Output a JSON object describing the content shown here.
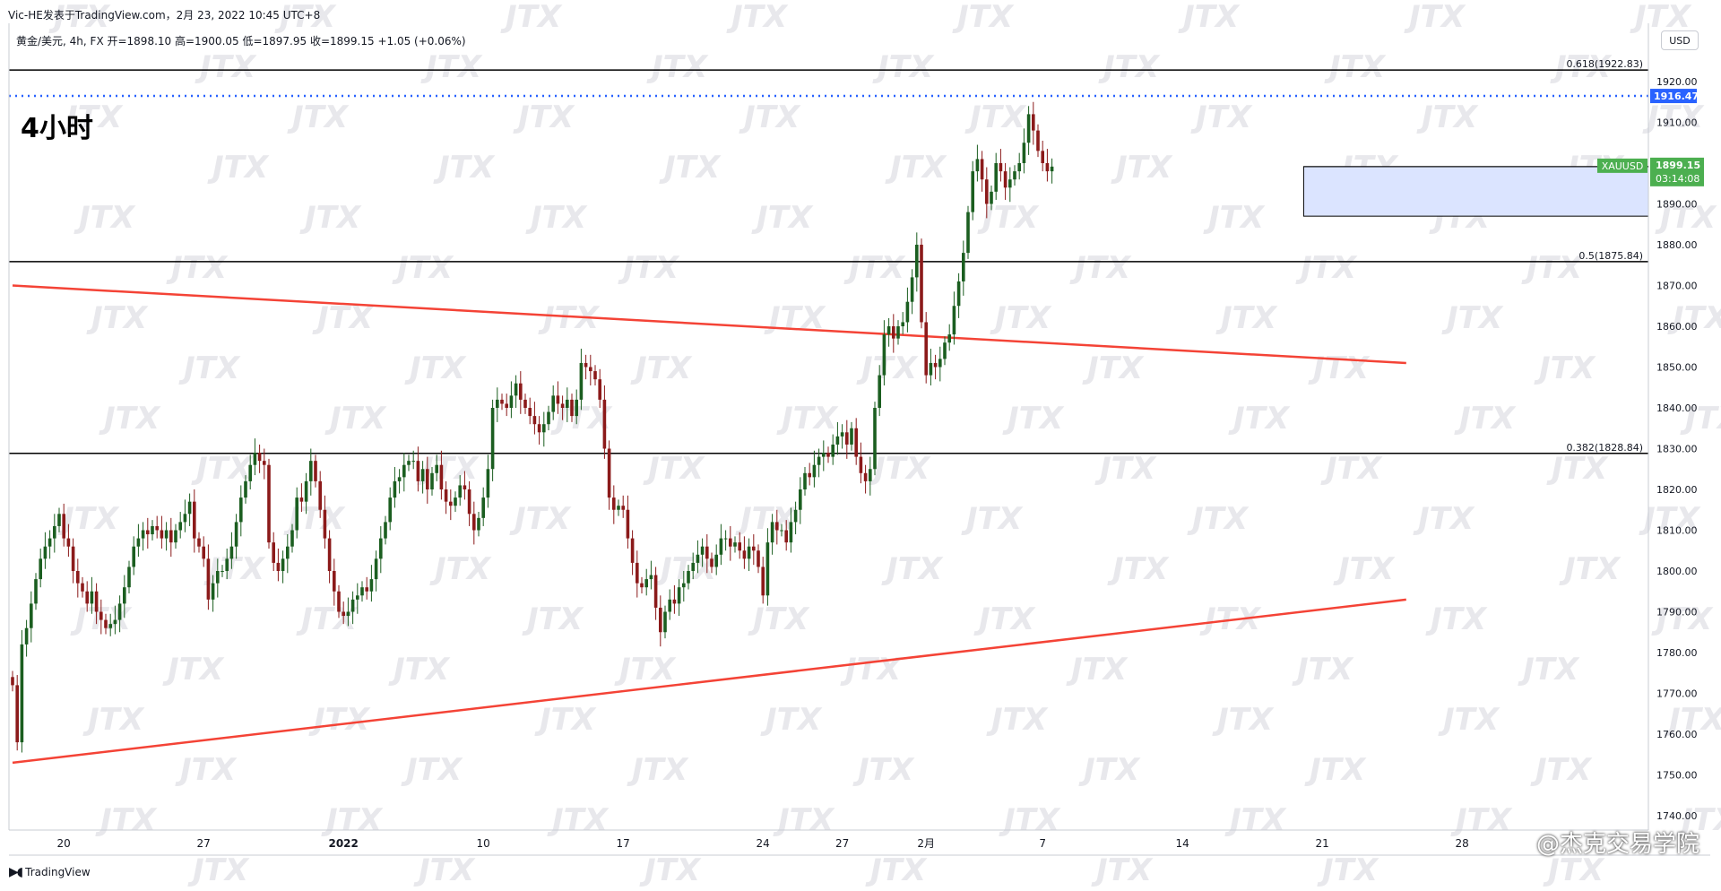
{
  "header": {
    "attribution": "Vic-HE发表于TradingView.com，2月 23, 2022 10:45 UTC+8",
    "symbol_info": "黄金/美元, 4h, FX  开=1898.10  高=1900.05  低=1897.95  收=1899.15  +1.05 (+0.06%)",
    "timeframe": "4小时",
    "currency": "USD"
  },
  "footer": {
    "brand": "TradingView",
    "watermark_text": "@杰克交易学院"
  },
  "watermark": "JTX",
  "colors": {
    "up": "#1b5e20",
    "down": "#8b1a1a",
    "trendline": "#f44336",
    "level": "#000000",
    "dotted": "#2962ff",
    "last_price": "#4caf50",
    "zone": "#dbe4ff"
  },
  "chart_data": {
    "type": "candlestick",
    "symbol": "XAUUSD",
    "interval": "4h",
    "ylim": [
      1736,
      1936
    ],
    "y_ticks": [
      1740,
      1750,
      1760,
      1770,
      1780,
      1790,
      1800,
      1810,
      1820,
      1830,
      1840,
      1850,
      1860,
      1870,
      1880,
      1890,
      1900,
      1910,
      1920
    ],
    "x_labels": [
      {
        "label": "20",
        "bar": 11
      },
      {
        "label": "27",
        "bar": 41
      },
      {
        "label": "2022",
        "bar": 71
      },
      {
        "label": "10",
        "bar": 101
      },
      {
        "label": "17",
        "bar": 131
      },
      {
        "label": "24",
        "bar": 161
      },
      {
        "label": "27",
        "bar": 178
      },
      {
        "label": "2月",
        "bar": 196
      },
      {
        "label": "7",
        "bar": 221
      },
      {
        "label": "14",
        "bar": 251
      },
      {
        "label": "21",
        "bar": 281
      },
      {
        "label": "28",
        "bar": 311
      }
    ],
    "closes": [
      1772,
      1758,
      1782,
      1786,
      1792,
      1798,
      1803,
      1806,
      1808,
      1811,
      1814,
      1808,
      1806,
      1800,
      1797,
      1795,
      1792,
      1795,
      1790,
      1788,
      1786,
      1787,
      1788,
      1792,
      1796,
      1801,
      1806,
      1808,
      1810,
      1809,
      1811,
      1810,
      1808,
      1810,
      1807,
      1810,
      1812,
      1814,
      1817,
      1808,
      1806,
      1803,
      1793,
      1797,
      1800,
      1800,
      1803,
      1806,
      1812,
      1818,
      1822,
      1826,
      1829,
      1827,
      1826,
      1807,
      1802,
      1800,
      1803,
      1806,
      1810,
      1818,
      1817,
      1822,
      1827,
      1822,
      1815,
      1808,
      1800,
      1795,
      1790,
      1789,
      1790,
      1793,
      1794,
      1796,
      1795,
      1798,
      1803,
      1808,
      1812,
      1818,
      1822,
      1823,
      1826,
      1827,
      1827,
      1822,
      1825,
      1820,
      1824,
      1826,
      1820,
      1817,
      1816,
      1818,
      1821,
      1820,
      1814,
      1810,
      1813,
      1818,
      1825,
      1840,
      1842,
      1841,
      1840,
      1843,
      1846,
      1842,
      1840,
      1838,
      1836,
      1834,
      1836,
      1839,
      1843,
      1841,
      1840,
      1842,
      1838,
      1842,
      1851,
      1850,
      1849,
      1847,
      1842,
      1830,
      1818,
      1815,
      1816,
      1815,
      1808,
      1802,
      1797,
      1796,
      1798,
      1799,
      1791,
      1785,
      1790,
      1793,
      1792,
      1796,
      1797,
      1800,
      1802,
      1804,
      1806,
      1803,
      1801,
      1804,
      1808,
      1808,
      1806,
      1807,
      1805,
      1803,
      1806,
      1805,
      1801,
      1794,
      1807,
      1812,
      1810,
      1810,
      1807,
      1812,
      1815,
      1820,
      1824,
      1823,
      1826,
      1828,
      1829,
      1828,
      1831,
      1833,
      1834,
      1831,
      1835,
      1828,
      1824,
      1822,
      1825,
      1840,
      1848,
      1858,
      1860,
      1857,
      1860,
      1861,
      1866,
      1872,
      1880,
      1861,
      1848,
      1851,
      1850,
      1852,
      1856,
      1858,
      1865,
      1871,
      1878,
      1888,
      1898,
      1901,
      1896,
      1890,
      1893,
      1900,
      1898,
      1894,
      1896,
      1898,
      1900,
      1905,
      1912,
      1908,
      1903,
      1900,
      1898,
      1899.15
    ],
    "levels": [
      {
        "label": "0.618(1922.83)",
        "value": 1922.83
      },
      {
        "label": "0.5(1875.84)",
        "value": 1875.84
      },
      {
        "label": "0.382(1828.84)",
        "value": 1828.84
      }
    ],
    "dotted_level": {
      "label": "1916.47",
      "value": 1916.47
    },
    "last_price": {
      "symbol": "XAUUSD",
      "value": "1899.15",
      "countdown": "03:14:08"
    },
    "zone": {
      "from_bar": 277,
      "top": 1899.15,
      "bottom": 1887
    },
    "trendlines": [
      {
        "name": "upper",
        "start": {
          "bar": 0,
          "value": 1870
        },
        "end": {
          "bar": 299,
          "value": 1851
        }
      },
      {
        "name": "lower",
        "start": {
          "bar": 0,
          "value": 1753
        },
        "end": {
          "bar": 299,
          "value": 1793
        }
      }
    ]
  }
}
